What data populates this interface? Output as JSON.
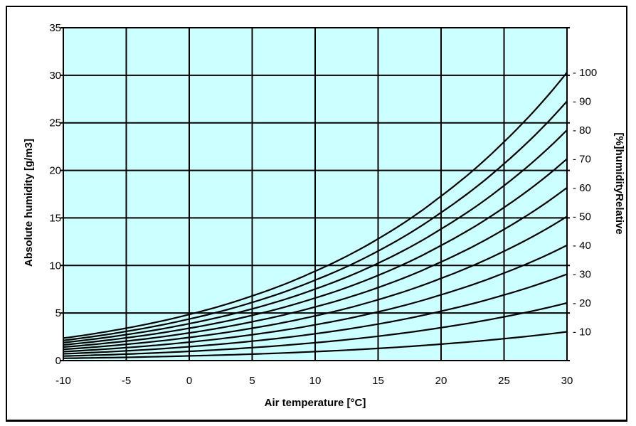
{
  "chart_data": {
    "type": "line",
    "xlabel": "Air temperature [°C]",
    "ylabel": "Absolute humidity [g/m3]",
    "y2label": "[%]humidityRelative",
    "xlim": [
      -10,
      30
    ],
    "ylim": [
      0,
      35
    ],
    "xticks": [
      -10,
      -5,
      0,
      5,
      10,
      15,
      20,
      25,
      30
    ],
    "yticks": [
      0,
      5,
      10,
      15,
      20,
      25,
      30,
      35
    ],
    "rh_ticks": [
      10,
      20,
      30,
      40,
      50,
      60,
      70,
      80,
      90,
      100
    ],
    "grid": true,
    "background_color": "#ccffff",
    "line_color": "#000000",
    "x": [
      -10,
      -5,
      0,
      5,
      10,
      15,
      20,
      25,
      30
    ],
    "saturation_values": [
      2.36,
      3.41,
      4.85,
      6.8,
      9.4,
      12.8,
      17.3,
      23.0,
      30.3
    ],
    "series": [
      {
        "rh": 10,
        "values": [
          0.24,
          0.34,
          0.49,
          0.68,
          0.94,
          1.28,
          1.73,
          2.3,
          3.03
        ]
      },
      {
        "rh": 20,
        "values": [
          0.47,
          0.68,
          0.97,
          1.36,
          1.88,
          2.56,
          3.46,
          4.6,
          6.06
        ]
      },
      {
        "rh": 30,
        "values": [
          0.71,
          1.02,
          1.46,
          2.04,
          2.82,
          3.84,
          5.19,
          6.9,
          9.09
        ]
      },
      {
        "rh": 40,
        "values": [
          0.94,
          1.36,
          1.94,
          2.72,
          3.76,
          5.12,
          6.92,
          9.2,
          12.12
        ]
      },
      {
        "rh": 50,
        "values": [
          1.18,
          1.71,
          2.43,
          3.4,
          4.7,
          6.4,
          8.65,
          11.5,
          15.15
        ]
      },
      {
        "rh": 60,
        "values": [
          1.42,
          2.05,
          2.91,
          4.08,
          5.64,
          7.68,
          10.38,
          13.8,
          18.18
        ]
      },
      {
        "rh": 70,
        "values": [
          1.65,
          2.39,
          3.4,
          4.76,
          6.58,
          8.96,
          12.11,
          16.1,
          21.21
        ]
      },
      {
        "rh": 80,
        "values": [
          1.89,
          2.73,
          3.88,
          5.44,
          7.52,
          10.24,
          13.84,
          18.4,
          24.24
        ]
      },
      {
        "rh": 90,
        "values": [
          2.12,
          3.07,
          4.37,
          6.12,
          8.46,
          11.52,
          15.57,
          20.7,
          27.27
        ]
      },
      {
        "rh": 100,
        "values": [
          2.36,
          3.41,
          4.85,
          6.8,
          9.4,
          12.8,
          17.3,
          23.0,
          30.3
        ]
      }
    ]
  }
}
